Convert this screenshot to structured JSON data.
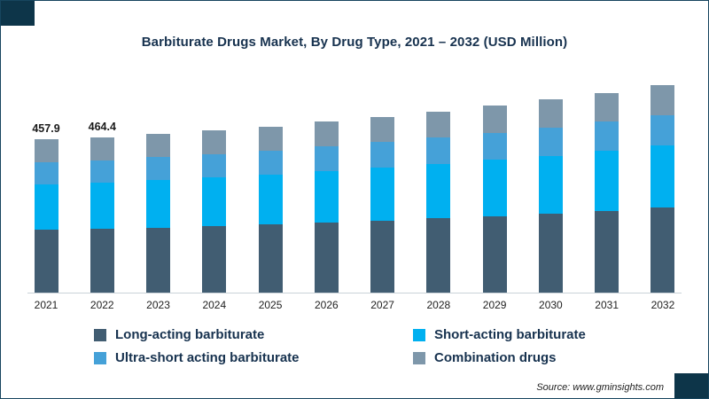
{
  "chart_data": {
    "type": "bar",
    "stacked": true,
    "title": "Barbiturate Drugs Market, By Drug Type, 2021 – 2032 (USD Million)",
    "categories": [
      "2021",
      "2022",
      "2023",
      "2024",
      "2025",
      "2026",
      "2027",
      "2028",
      "2029",
      "2030",
      "2031",
      "2032"
    ],
    "series": [
      {
        "name": "Long-acting barbiturate",
        "color": "#415d72",
        "values": [
          188,
          190,
          194,
          199,
          204,
          210,
          216,
          222,
          229,
          237,
          245,
          254
        ]
      },
      {
        "name": "Short-acting barbiturate",
        "color": "#00b0f0",
        "values": [
          137,
          139,
          142,
          146,
          149,
          153,
          158,
          163,
          168,
          173,
          179,
          186
        ]
      },
      {
        "name": "Ultra-short acting barbiturate",
        "color": "#45a1d8",
        "values": [
          66,
          67,
          69,
          70,
          72,
          74,
          76,
          79,
          81,
          84,
          87,
          90
        ]
      },
      {
        "name": "Combination drugs",
        "color": "#7e97aa",
        "values": [
          66.9,
          68.4,
          69,
          70,
          72,
          74,
          76,
          78,
          81,
          84,
          87,
          90
        ]
      }
    ],
    "data_labels": [
      "457.9",
      "464.4",
      "",
      "",
      "",
      "",
      "",
      "",
      "",
      "",
      "",
      ""
    ],
    "ylim": [
      0,
      650
    ],
    "grid": false,
    "legend_position": "bottom",
    "source": "Source: www.gminsights.com"
  }
}
